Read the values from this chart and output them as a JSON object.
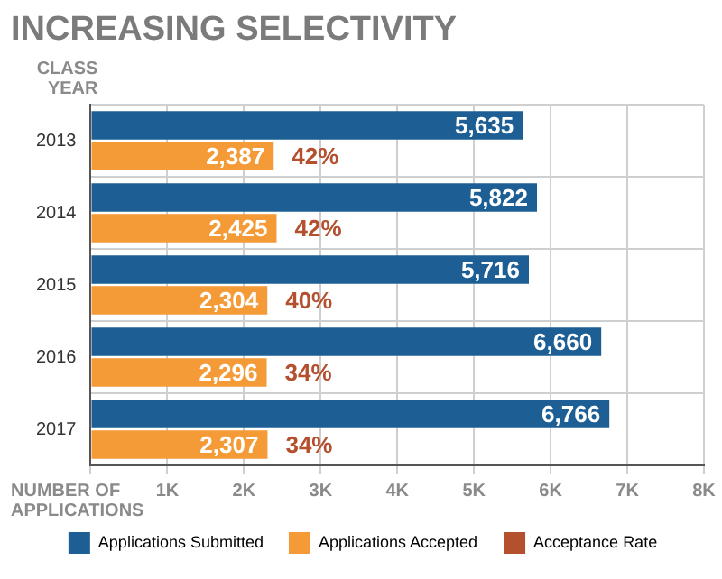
{
  "chart_data": {
    "type": "bar",
    "orientation": "horizontal",
    "title": "INCREASING SELECTIVITY",
    "ylabel": "CLASS YEAR",
    "xlabel": "NUMBER OF APPLICATIONS",
    "categories": [
      "2013",
      "2014",
      "2015",
      "2016",
      "2017"
    ],
    "series": [
      {
        "name": "Applications Submitted",
        "color": "#1d5f95",
        "values": [
          5635,
          5822,
          5716,
          6660,
          6766
        ],
        "value_labels": [
          "5,635",
          "5,822",
          "5,716",
          "6,660",
          "6,766"
        ]
      },
      {
        "name": "Applications Accepted",
        "color": "#f49b37",
        "values": [
          2387,
          2425,
          2304,
          2296,
          2307
        ],
        "value_labels": [
          "2,387",
          "2,425",
          "2,304",
          "2,296",
          "2,307"
        ]
      },
      {
        "name": "Acceptance Rate",
        "color": "#b4502e",
        "type": "other",
        "values": [
          null,
          null,
          null,
          null,
          null
        ]
      }
    ],
    "annotations": [
      {
        "text": "42%",
        "x": 2387,
        "y": "2013"
      },
      {
        "text": "42%",
        "x": 2425,
        "y": "2014"
      },
      {
        "text": "40%",
        "x": 2304,
        "y": "2015"
      },
      {
        "text": "34%",
        "x": 2296,
        "y": "2016"
      },
      {
        "text": "34%",
        "x": 2307,
        "y": "2017"
      }
    ],
    "xlim": [
      0,
      8000
    ],
    "xticks": [
      {
        "value": 0,
        "label": null
      },
      {
        "value": 1000,
        "label": "1K"
      },
      {
        "value": 2000,
        "label": "2K"
      },
      {
        "value": 3000,
        "label": "3K"
      },
      {
        "value": 4000,
        "label": "4K"
      },
      {
        "value": 5000,
        "label": "5K"
      },
      {
        "value": 6000,
        "label": "6K"
      },
      {
        "value": 7000,
        "label": "7K"
      },
      {
        "value": 8000,
        "label": "8K"
      }
    ],
    "grid": true,
    "legend": "bottom"
  }
}
